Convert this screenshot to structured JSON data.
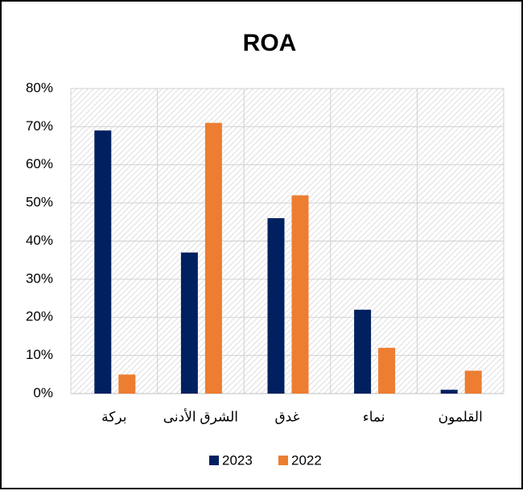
{
  "chart_data": {
    "type": "bar",
    "title": "ROA",
    "categories": [
      "بركة",
      "الشرق الأدنى",
      "غدق",
      "نماء",
      "القلمون"
    ],
    "series": [
      {
        "name": "2023",
        "color": "#002060",
        "values": [
          69,
          37,
          46,
          22,
          1
        ]
      },
      {
        "name": "2022",
        "color": "#ED7D31",
        "values": [
          5,
          71,
          52,
          12,
          6
        ]
      }
    ],
    "ylim": [
      0,
      80
    ],
    "yticks": [
      {
        "value": 0,
        "label": "0%"
      },
      {
        "value": 10,
        "label": "10%"
      },
      {
        "value": 20,
        "label": "20%"
      },
      {
        "value": 30,
        "label": "30%"
      },
      {
        "value": 40,
        "label": "40%"
      },
      {
        "value": 50,
        "label": "50%"
      },
      {
        "value": 60,
        "label": "60%"
      },
      {
        "value": 70,
        "label": "70%"
      },
      {
        "value": 80,
        "label": "80%"
      }
    ],
    "grid": true,
    "legend": "bottom"
  }
}
